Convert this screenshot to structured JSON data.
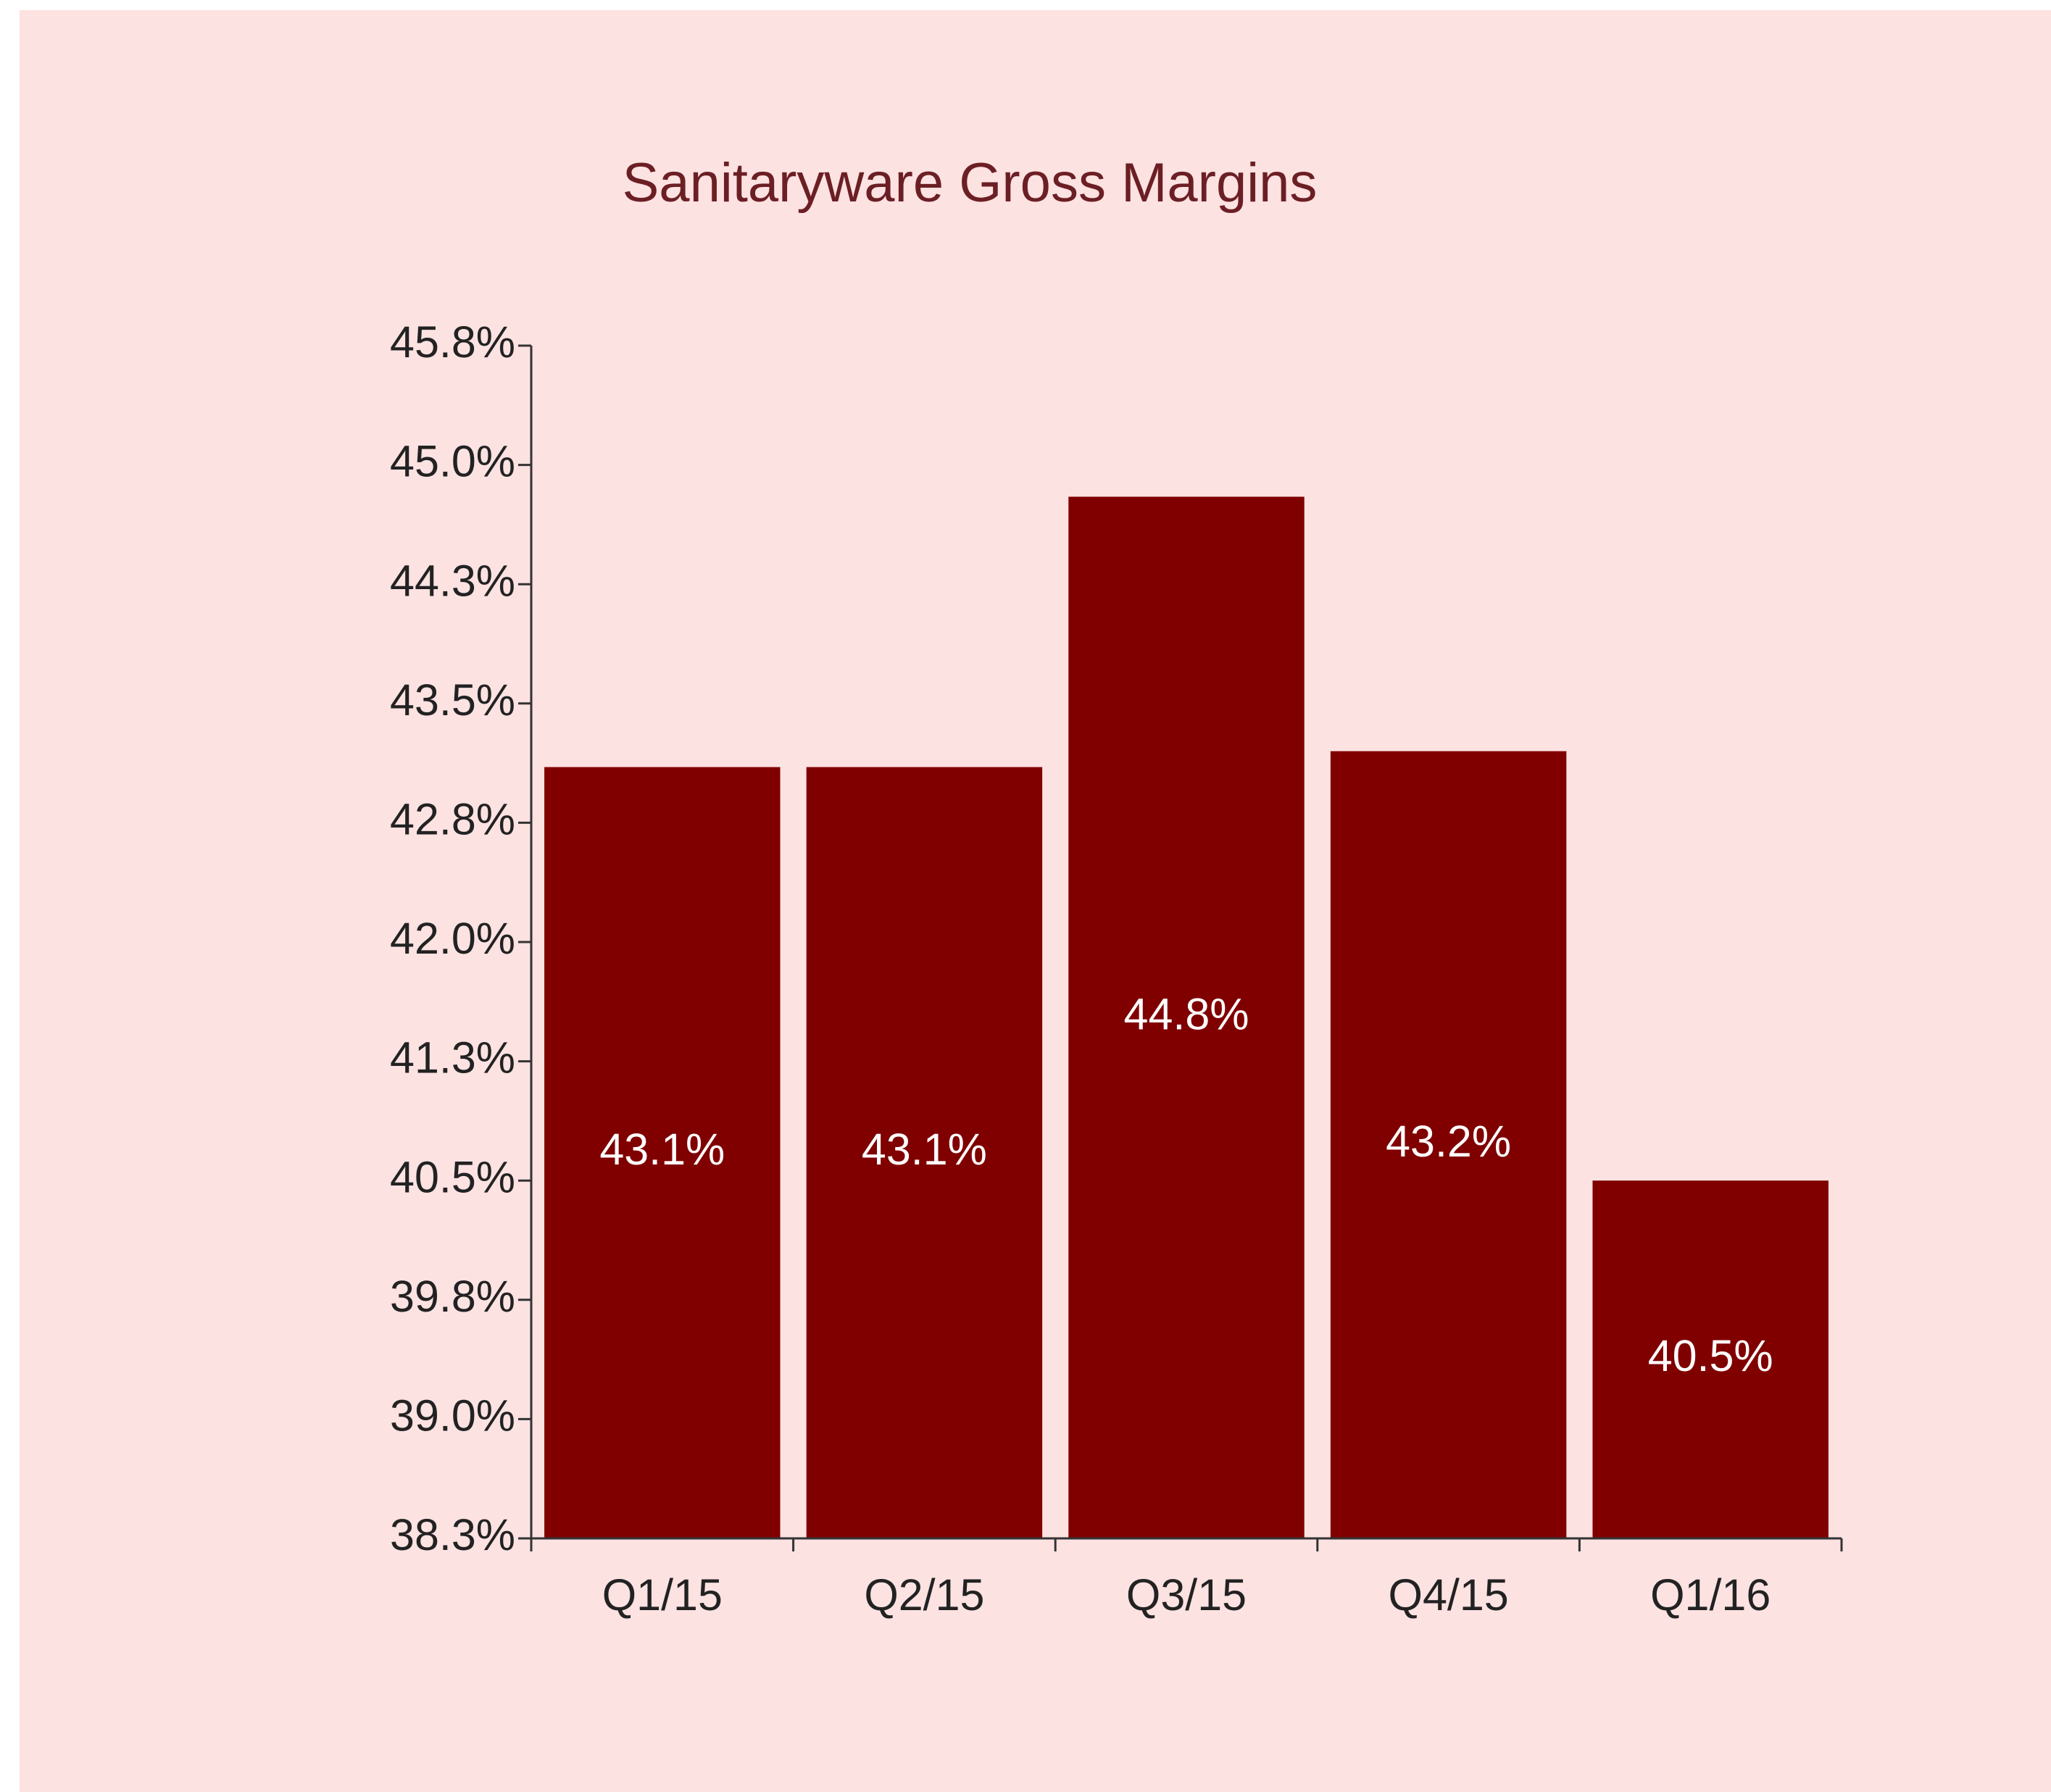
{
  "chart_data": {
    "type": "bar",
    "title": "Sanitaryware Gross Margins",
    "categories": [
      "Q1/15",
      "Q2/15",
      "Q3/15",
      "Q4/15",
      "Q1/16"
    ],
    "values": [
      43.1,
      43.1,
      44.8,
      43.2,
      40.5
    ],
    "value_labels": [
      "43.1%",
      "43.1%",
      "44.8%",
      "43.2%",
      "40.5%"
    ],
    "color": "#800000",
    "ylim": [
      38.25,
      45.75
    ],
    "yticks": [
      {
        "value": 38.25,
        "label": "38.3%"
      },
      {
        "value": 39.0,
        "label": "39.0%"
      },
      {
        "value": 39.75,
        "label": "39.8%"
      },
      {
        "value": 40.5,
        "label": "40.5%"
      },
      {
        "value": 41.25,
        "label": "41.3%"
      },
      {
        "value": 42.0,
        "label": "42.0%"
      },
      {
        "value": 42.75,
        "label": "42.8%"
      },
      {
        "value": 43.5,
        "label": "43.5%"
      },
      {
        "value": 44.25,
        "label": "44.3%"
      },
      {
        "value": 45.0,
        "label": "45.0%"
      },
      {
        "value": 45.75,
        "label": "45.8%"
      }
    ],
    "grid": false
  }
}
